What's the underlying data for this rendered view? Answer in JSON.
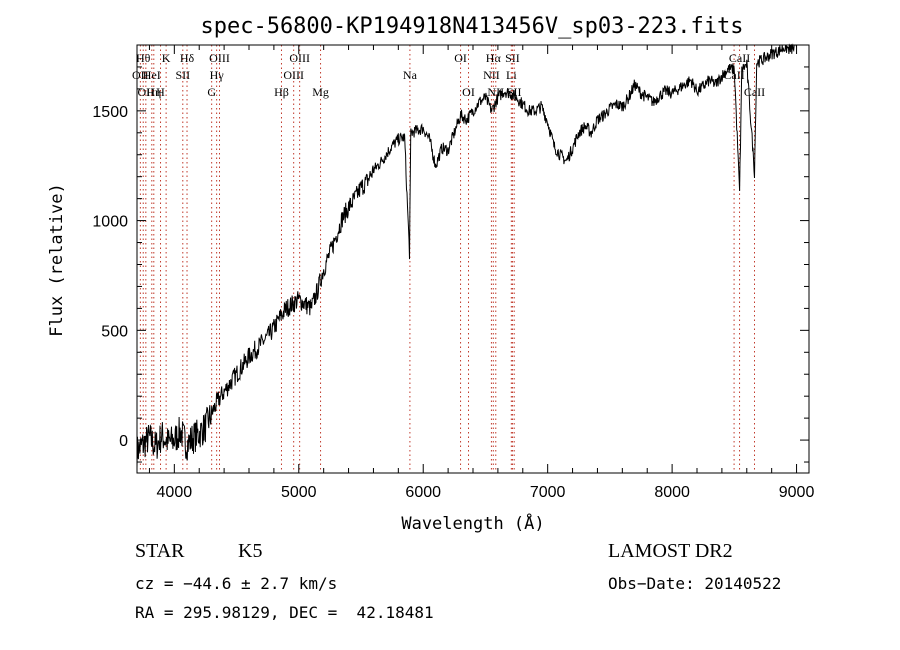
{
  "chart_data": {
    "type": "line",
    "title": "spec-56800-KP194918N413456V_sp03-223.fits",
    "xlabel": "Wavelength (Å)",
    "ylabel": "Flux (relative)",
    "xlim": [
      3700,
      9100
    ],
    "ylim": [
      -150,
      1800
    ],
    "xticks": [
      4000,
      5000,
      6000,
      7000,
      8000,
      9000
    ],
    "yticks": [
      0,
      500,
      1000,
      1500
    ],
    "grid": false,
    "series": [
      {
        "x": [
          3700,
          3750,
          3800,
          3850,
          3900,
          3950,
          4000,
          4050,
          4100,
          4150,
          4200,
          4250,
          4300,
          4350,
          4400,
          4450,
          4500,
          4550,
          4600,
          4650,
          4700,
          4750,
          4800,
          4850,
          4900,
          4950,
          5000,
          5050,
          5100,
          5150,
          5200,
          5250,
          5300,
          5350,
          5400,
          5450,
          5500,
          5550,
          5600,
          5650,
          5700,
          5750,
          5800,
          5850,
          5890,
          5900,
          5950,
          6000,
          6050,
          6100,
          6150,
          6200,
          6250,
          6300,
          6350,
          6400,
          6450,
          6500,
          6550,
          6600,
          6650,
          6700,
          6750,
          6800,
          6850,
          6900,
          6950,
          7000,
          7050,
          7100,
          7150,
          7200,
          7250,
          7300,
          7350,
          7400,
          7450,
          7500,
          7550,
          7600,
          7650,
          7700,
          7750,
          7800,
          7850,
          7900,
          7950,
          8000,
          8050,
          8100,
          8150,
          8200,
          8250,
          8300,
          8350,
          8400,
          8450,
          8500,
          8542,
          8560,
          8600,
          8662,
          8680,
          8750,
          8800,
          8850,
          8900,
          8950,
          9000
        ],
        "y": [
          -50,
          -20,
          10,
          -30,
          20,
          -10,
          0,
          40,
          -20,
          10,
          30,
          60,
          120,
          180,
          220,
          260,
          300,
          340,
          380,
          410,
          440,
          470,
          510,
          560,
          600,
          620,
          640,
          620,
          600,
          680,
          780,
          850,
          930,
          1010,
          1060,
          1100,
          1150,
          1180,
          1230,
          1260,
          1300,
          1340,
          1370,
          1380,
          850,
          1400,
          1410,
          1420,
          1370,
          1250,
          1330,
          1320,
          1400,
          1480,
          1460,
          1500,
          1540,
          1560,
          1500,
          1560,
          1590,
          1580,
          1560,
          1530,
          1500,
          1500,
          1520,
          1450,
          1340,
          1300,
          1270,
          1330,
          1400,
          1430,
          1400,
          1460,
          1480,
          1510,
          1530,
          1520,
          1560,
          1620,
          1580,
          1560,
          1540,
          1570,
          1590,
          1580,
          1600,
          1620,
          1640,
          1590,
          1610,
          1640,
          1620,
          1660,
          1690,
          1690,
          1130,
          1690,
          1710,
          1220,
          1720,
          1740,
          1760,
          1770,
          1790,
          1780,
          1790
        ]
      }
    ],
    "lines": [
      {
        "x": 3750,
        "label": "Hθ",
        "row": 0
      },
      {
        "x": 3727,
        "label": "OII",
        "row": 1
      },
      {
        "x": 3771,
        "label": "OII",
        "row": 2
      },
      {
        "x": 3819,
        "label": "HeI",
        "row": 1
      },
      {
        "x": 3835,
        "label": "Hη",
        "row": 2
      },
      {
        "x": 3889,
        "label": "H",
        "row": 2
      },
      {
        "x": 3934,
        "label": "K",
        "row": 0
      },
      {
        "x": 4068,
        "label": "SII",
        "row": 1
      },
      {
        "x": 4102,
        "label": "Hδ",
        "row": 0
      },
      {
        "x": 4300,
        "label": "G",
        "row": 2
      },
      {
        "x": 4340,
        "label": "Hγ",
        "row": 1
      },
      {
        "x": 4363,
        "label": "OIII",
        "row": 0
      },
      {
        "x": 4861,
        "label": "Hβ",
        "row": 2
      },
      {
        "x": 4959,
        "label": "OIII",
        "row": 1
      },
      {
        "x": 5007,
        "label": "OIII",
        "row": 0
      },
      {
        "x": 5175,
        "label": "Mg",
        "row": 2
      },
      {
        "x": 5893,
        "label": "Na",
        "row": 1
      },
      {
        "x": 6300,
        "label": "OI",
        "row": 0
      },
      {
        "x": 6364,
        "label": "OI",
        "row": 2
      },
      {
        "x": 6548,
        "label": "NII",
        "row": 1
      },
      {
        "x": 6563,
        "label": "Hα",
        "row": 0
      },
      {
        "x": 6583,
        "label": "NII",
        "row": 2
      },
      {
        "x": 6708,
        "label": "Li",
        "row": 1
      },
      {
        "x": 6717,
        "label": "SII",
        "row": 0
      },
      {
        "x": 6731,
        "label": "SII",
        "row": 2
      },
      {
        "x": 8498,
        "label": "CaII",
        "row": 1
      },
      {
        "x": 8542,
        "label": "CaII",
        "row": 0
      },
      {
        "x": 8662,
        "label": "CaII",
        "row": 2
      }
    ]
  },
  "info": {
    "object_class": "STAR",
    "subclass": "K5",
    "survey": "LAMOST DR2",
    "cz": "cz = −44.6 ± 2.7 km/s",
    "obs_date": "Obs−Date: 20140522",
    "coords": "RA = 295.98129, DEC =  42.18481"
  }
}
